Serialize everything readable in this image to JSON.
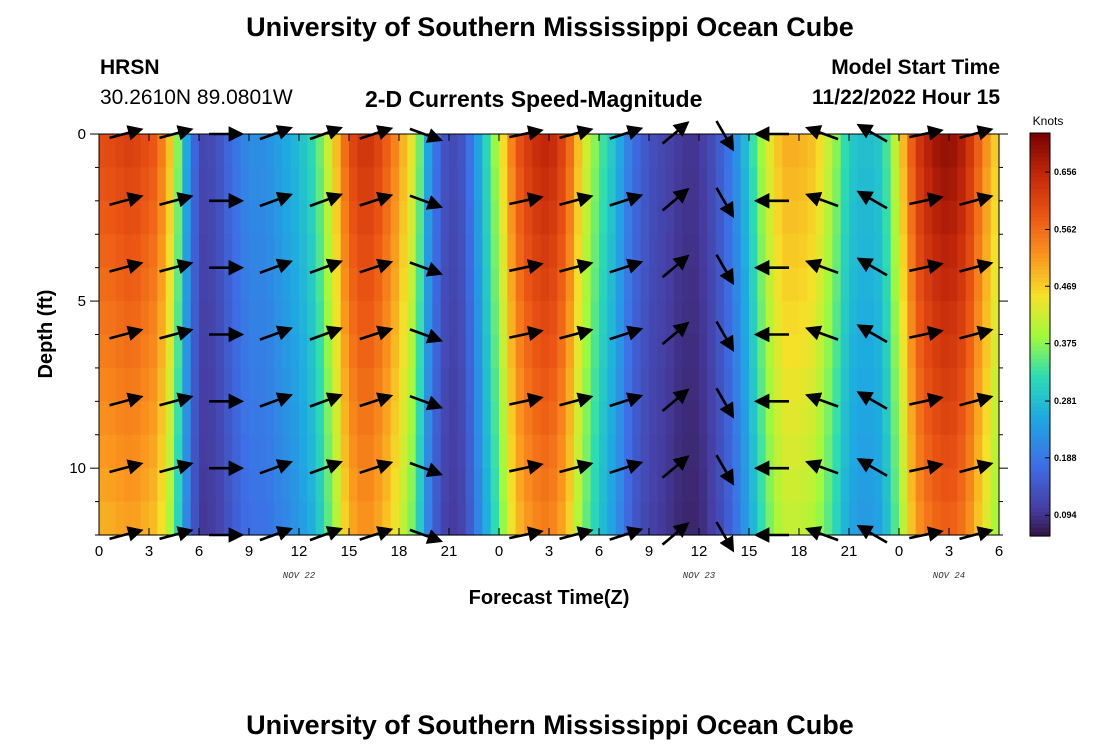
{
  "header": {
    "title": "University of Southern Mississippi Ocean Cube",
    "station_code": "HRSN",
    "coordinates": "30.2610N  89.0801W",
    "plot_title": "2-D Currents Speed-Magnitude",
    "model_start_label": "Model Start Time",
    "model_start_value": "11/22/2022 Hour 15"
  },
  "footer": {
    "title": "University of Southern Mississippi Ocean Cube"
  },
  "chart_data": {
    "type": "heatmap",
    "title": "2-D Currents Speed-Magnitude",
    "xlabel": "Forecast Time(Z)",
    "ylabel": "Depth (ft)",
    "x_hours": [
      0,
      3,
      6,
      9,
      12,
      15,
      18,
      21,
      24,
      27,
      30,
      33,
      36,
      39,
      42,
      45,
      48,
      51,
      54
    ],
    "x_tick_labels": [
      "0",
      "3",
      "6",
      "9",
      "12",
      "15",
      "18",
      "21",
      "0",
      "3",
      "6",
      "9",
      "12",
      "15",
      "18",
      "21",
      "0",
      "3",
      "6"
    ],
    "date_labels": [
      {
        "hour": 12,
        "text": "NOV 22"
      },
      {
        "hour": 36,
        "text": "NOV 23"
      },
      {
        "hour": 51,
        "text": "NOV 24"
      }
    ],
    "xlim": [
      0,
      54
    ],
    "y_ticks": [
      0,
      5,
      10
    ],
    "ylim": [
      0,
      12
    ],
    "colorbar": {
      "unit": "Knots",
      "range": [
        0.06,
        0.72
      ],
      "tick_values": [
        0.656,
        0.562,
        0.469,
        0.375,
        0.281,
        0.188,
        0.094
      ],
      "tick_labels": [
        "0.656",
        "0.562",
        "0.469",
        "0.375",
        "0.281",
        "0.188",
        "0.094"
      ]
    },
    "speed_by_hour": [
      {
        "hour": 0.5,
        "speed": 0.6
      },
      {
        "hour": 2,
        "speed": 0.62
      },
      {
        "hour": 3.5,
        "speed": 0.58
      },
      {
        "hour": 4.5,
        "speed": 0.45
      },
      {
        "hour": 5,
        "speed": 0.3
      },
      {
        "hour": 6,
        "speed": 0.12
      },
      {
        "hour": 7,
        "speed": 0.13
      },
      {
        "hour": 8,
        "speed": 0.18
      },
      {
        "hour": 9,
        "speed": 0.22
      },
      {
        "hour": 10,
        "speed": 0.22
      },
      {
        "hour": 11,
        "speed": 0.25
      },
      {
        "hour": 12,
        "speed": 0.28
      },
      {
        "hour": 13,
        "speed": 0.33
      },
      {
        "hour": 14,
        "speed": 0.45
      },
      {
        "hour": 15,
        "speed": 0.6
      },
      {
        "hour": 16,
        "speed": 0.64
      },
      {
        "hour": 17,
        "speed": 0.6
      },
      {
        "hour": 18,
        "speed": 0.52
      },
      {
        "hour": 19,
        "speed": 0.42
      },
      {
        "hour": 19.5,
        "speed": 0.3
      },
      {
        "hour": 20,
        "speed": 0.2
      },
      {
        "hour": 21,
        "speed": 0.12
      },
      {
        "hour": 22,
        "speed": 0.15
      },
      {
        "hour": 23,
        "speed": 0.28
      },
      {
        "hour": 24,
        "speed": 0.42
      },
      {
        "hour": 25,
        "speed": 0.58
      },
      {
        "hour": 26,
        "speed": 0.64
      },
      {
        "hour": 27,
        "speed": 0.66
      },
      {
        "hour": 28,
        "speed": 0.6
      },
      {
        "hour": 29,
        "speed": 0.45
      },
      {
        "hour": 30,
        "speed": 0.35
      },
      {
        "hour": 31,
        "speed": 0.28
      },
      {
        "hour": 32,
        "speed": 0.18
      },
      {
        "hour": 33,
        "speed": 0.14
      },
      {
        "hour": 34,
        "speed": 0.12
      },
      {
        "hour": 35,
        "speed": 0.1
      },
      {
        "hour": 36,
        "speed": 0.1
      },
      {
        "hour": 37,
        "speed": 0.14
      },
      {
        "hour": 38,
        "speed": 0.2
      },
      {
        "hour": 39,
        "speed": 0.3
      },
      {
        "hour": 40,
        "speed": 0.42
      },
      {
        "hour": 41,
        "speed": 0.5
      },
      {
        "hour": 42,
        "speed": 0.5
      },
      {
        "hour": 43,
        "speed": 0.48
      },
      {
        "hour": 44,
        "speed": 0.4
      },
      {
        "hour": 45,
        "speed": 0.3
      },
      {
        "hour": 46,
        "speed": 0.28
      },
      {
        "hour": 47,
        "speed": 0.3
      },
      {
        "hour": 48,
        "speed": 0.45
      },
      {
        "hour": 49,
        "speed": 0.62
      },
      {
        "hour": 50,
        "speed": 0.68
      },
      {
        "hour": 51,
        "speed": 0.7
      },
      {
        "hour": 52,
        "speed": 0.66
      },
      {
        "hour": 53,
        "speed": 0.55
      },
      {
        "hour": 54,
        "speed": 0.45
      }
    ],
    "vector_depths_ft": [
      0,
      2,
      4,
      6,
      8,
      10,
      12
    ],
    "vectors": [
      {
        "hour": 1.5,
        "dir": -15
      },
      {
        "hour": 4.5,
        "dir": -15
      },
      {
        "hour": 7.5,
        "dir": 0
      },
      {
        "hour": 10.5,
        "dir": -20
      },
      {
        "hour": 13.5,
        "dir": -20
      },
      {
        "hour": 16.5,
        "dir": -18
      },
      {
        "hour": 19.5,
        "dir": 20
      },
      {
        "hour": 25.5,
        "dir": -12
      },
      {
        "hour": 28.5,
        "dir": -15
      },
      {
        "hour": 31.5,
        "dir": -18
      },
      {
        "hour": 34.5,
        "dir": -40
      },
      {
        "hour": 37.5,
        "dir": 60
      },
      {
        "hour": 40.5,
        "dir": 180
      },
      {
        "hour": 43.5,
        "dir": 200
      },
      {
        "hour": 46.5,
        "dir": 210
      },
      {
        "hour": 49.5,
        "dir": -12
      },
      {
        "hour": 52.5,
        "dir": -15
      }
    ]
  }
}
